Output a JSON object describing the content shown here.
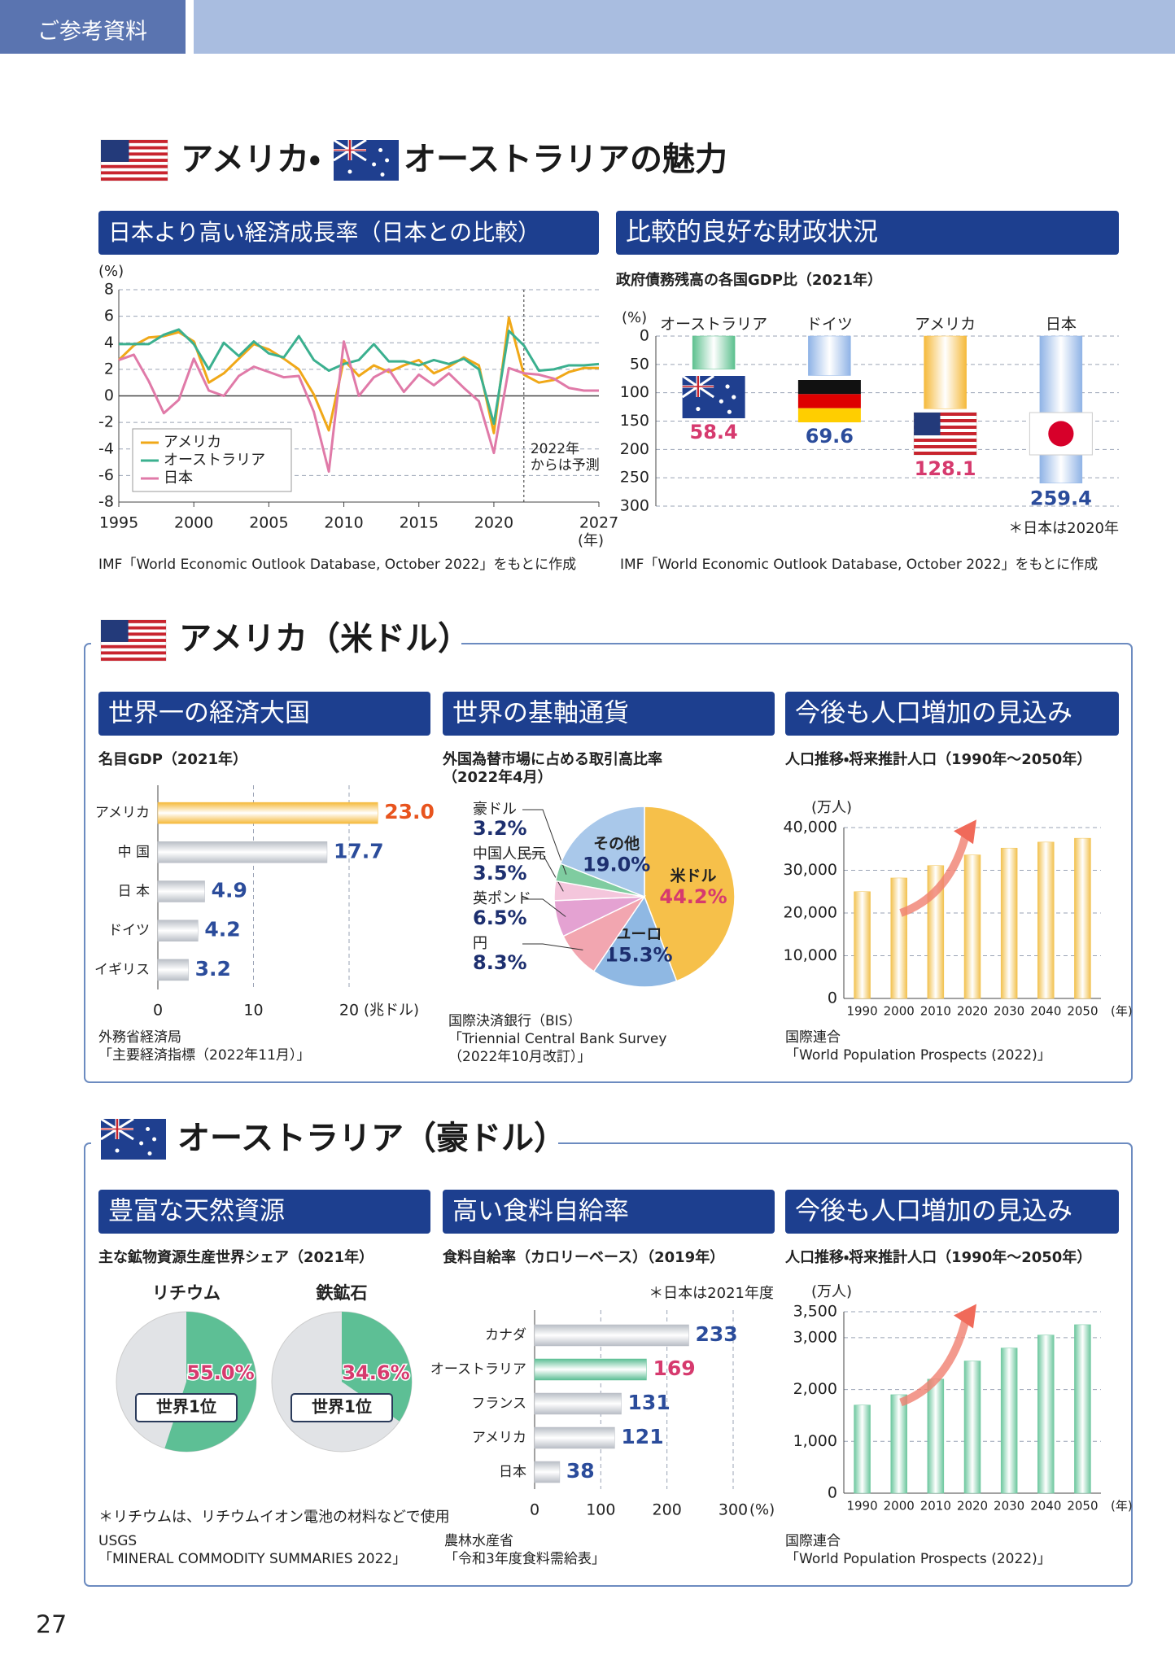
{
  "header": {
    "label": "ご参考資料"
  },
  "title_parts": [
    "アメリカ・",
    "オーストラリアの魅力"
  ],
  "sections": [
    {
      "title": "アメリカ（米ドル）"
    },
    {
      "title": "オーストラリア（豪ドル）"
    }
  ],
  "page_number": 27,
  "chart_data": [
    {
      "type": "line",
      "panel_title": "日本より高い経済成長率（日本との比較）",
      "x": [
        1995,
        1996,
        1997,
        1998,
        1999,
        2000,
        2001,
        2002,
        2003,
        2004,
        2005,
        2006,
        2007,
        2008,
        2009,
        2010,
        2011,
        2012,
        2013,
        2014,
        2015,
        2016,
        2017,
        2018,
        2019,
        2020,
        2021,
        2022,
        2023,
        2024,
        2025,
        2026,
        2027
      ],
      "series": [
        {
          "name": "アメリカ",
          "color": "#f0a818",
          "values": [
            2.7,
            3.8,
            4.4,
            4.5,
            4.8,
            4.1,
            1.0,
            1.7,
            2.8,
            3.9,
            3.5,
            2.8,
            2.0,
            0.1,
            -2.6,
            2.7,
            1.5,
            2.3,
            1.8,
            2.3,
            2.7,
            1.7,
            2.2,
            2.9,
            2.3,
            -2.8,
            5.9,
            1.6,
            1.0,
            1.2,
            1.8,
            2.1,
            2.1
          ]
        },
        {
          "name": "オーストラリア",
          "color": "#3bb08f",
          "values": [
            3.9,
            3.9,
            3.9,
            4.6,
            5.0,
            3.9,
            2.0,
            4.0,
            3.0,
            4.1,
            3.2,
            2.9,
            4.5,
            2.7,
            1.9,
            2.4,
            2.7,
            3.9,
            2.6,
            2.6,
            2.3,
            2.7,
            2.4,
            2.8,
            2.0,
            -2.1,
            4.9,
            3.8,
            1.9,
            2.0,
            2.3,
            2.3,
            2.4
          ]
        },
        {
          "name": "日本",
          "color": "#e07aa8",
          "values": [
            2.7,
            3.1,
            1.1,
            -1.3,
            -0.3,
            2.8,
            0.4,
            0.0,
            1.5,
            2.2,
            1.8,
            1.4,
            1.5,
            -1.2,
            -5.7,
            4.1,
            0.0,
            1.4,
            2.0,
            0.3,
            1.6,
            0.8,
            1.7,
            0.6,
            -0.4,
            -4.3,
            2.1,
            1.7,
            1.6,
            1.3,
            0.6,
            0.4,
            0.4
          ]
        }
      ],
      "xlim": [
        1995,
        2027
      ],
      "xticks": [
        1995,
        2000,
        2005,
        2010,
        2015,
        2020,
        2027
      ],
      "ylim": [
        -8,
        8
      ],
      "yticks": [
        -8,
        -6,
        -4,
        -2,
        0,
        2,
        4,
        6,
        8
      ],
      "y_label": "(%)",
      "x_label": "(年)",
      "grid": true,
      "legend": "lower left",
      "forecast_x": 2022,
      "annotation": [
        "2022年",
        "からは予測"
      ],
      "source": [
        "IMF「World Economic Outlook Database, October 2022」をもとに作成"
      ]
    },
    {
      "type": "bar",
      "y_inverted": true,
      "panel_title": "比較的良好な財政状況",
      "title": "政府債務残高の各国GDP比（2021年）",
      "categories": [
        "オーストラリア",
        "ドイツ",
        "アメリカ",
        "日本"
      ],
      "values": [
        58.4,
        69.6,
        128.1,
        259.4
      ],
      "colors": [
        "#5cc08e",
        "#8fb3e6",
        "#f5b93a",
        "#8fb3e6"
      ],
      "label_colors": [
        "#d63a6e",
        "#2b4c9b",
        "#d63a6e",
        "#2b4c9b"
      ],
      "ylim": [
        0,
        300
      ],
      "yticks": [
        0,
        50,
        100,
        150,
        200,
        250,
        300
      ],
      "y_label": "(%)",
      "grid": true,
      "note": "＊日本は2020年",
      "source": [
        "IMF「World Economic Outlook Database, October 2022」をもとに作成"
      ]
    },
    {
      "type": "hbar",
      "panel_title": "世界一の経済大国",
      "title": "名目GDP（2021年）",
      "categories": [
        "アメリカ",
        "中 国",
        "日 本",
        "ドイツ",
        "イギリス"
      ],
      "values": [
        23.0,
        17.7,
        4.9,
        4.2,
        3.2
      ],
      "value_labels": [
        "23.0",
        "17.7",
        "4.9",
        "4.2",
        "3.2"
      ],
      "colors": [
        "#f5b93a",
        "#b9bec6",
        "#b9bec6",
        "#b9bec6",
        "#b9bec6"
      ],
      "label_colors": [
        "#e8541e",
        "#2b4c9b",
        "#2b4c9b",
        "#2b4c9b",
        "#2b4c9b"
      ],
      "xlim": [
        0,
        24
      ],
      "xticks": [
        0,
        10,
        20
      ],
      "x_label": "(兆ドル)",
      "grid": true,
      "source": [
        "外務省経済局",
        "「主要経済指標（2022年11月）」"
      ]
    },
    {
      "type": "pie",
      "panel_title": "世界の基軸通貨",
      "title": [
        "外国為替市場に占める取引高比率",
        "（2022年4月）"
      ],
      "categories": [
        "米ドル",
        "ユーロ",
        "円",
        "英ポンド",
        "中国人民元",
        "豪ドル",
        "その他"
      ],
      "values": [
        44.2,
        15.3,
        8.3,
        6.5,
        3.5,
        3.2,
        19.0
      ],
      "value_labels": [
        "44.2%",
        "15.3%",
        "8.3%",
        "6.5%",
        "3.5%",
        "3.2%",
        "19.0%"
      ],
      "colors": [
        "#f6c04a",
        "#8fb8e3",
        "#f2a6b0",
        "#e4a2d2",
        "#f4c6dc",
        "#7fcca0",
        "#a9c8ea"
      ],
      "label_colors": [
        "#d63a6e",
        "#1d2f6f",
        "#1d2f6f",
        "#1d2f6f",
        "#1d2f6f",
        "#1d2f6f",
        "#1d2f6f"
      ],
      "source": [
        "国際決済銀行（BIS）",
        "「Triennial Central Bank Survey",
        "（2022年10月改訂）」"
      ]
    },
    {
      "type": "bar",
      "panel_title": "今後も人口増加の見込み",
      "title": "人口推移・将来推計人口（1990年～2050年）",
      "categories": [
        "1990",
        "2000",
        "2010",
        "2020",
        "2030",
        "2040",
        "2050"
      ],
      "values": [
        25000,
        28200,
        31100,
        33600,
        35200,
        36600,
        37500
      ],
      "color": "#f2c14e",
      "ylim": [
        0,
        40000
      ],
      "yticks": [
        0,
        {
          "value": 10000,
          "label": "10,000"
        },
        {
          "value": 20000,
          "label": "20,000"
        },
        {
          "value": 30000,
          "label": "30,000"
        },
        {
          "value": 40000,
          "label": "40,000"
        }
      ],
      "y_label": "(万人)",
      "x_label": "(年)",
      "grid": true,
      "source": [
        "国際連合",
        "「World Population Prospects (2022)」"
      ]
    },
    {
      "type": "pie_share",
      "panel_title": "豊富な天然資源",
      "title": "主な鉱物資源生産世界シェア（2021年）",
      "categories": [
        "リチウム",
        "鉄鉱石"
      ],
      "values": [
        55.0,
        34.6
      ],
      "value_labels": [
        "55.0%",
        "34.6%"
      ],
      "center_label": "世界1位",
      "color": "#5dbf95",
      "rest_color": "#e1e3e6",
      "note": "＊リチウムは、リチウムイオン電池の材料などで使用",
      "source": [
        "USGS",
        "「MINERAL COMMODITY SUMMARIES 2022」"
      ]
    },
    {
      "type": "hbar",
      "panel_title": "高い食料自給率",
      "title": "食料自給率（カロリーベース）（2019年）",
      "categories": [
        "カナダ",
        "オーストラリア",
        "フランス",
        "アメリカ",
        "日本"
      ],
      "values": [
        233,
        169,
        131,
        121,
        38
      ],
      "colors": [
        "#b9bec6",
        "#5dbf95",
        "#b9bec6",
        "#b9bec6",
        "#b9bec6"
      ],
      "label_colors": [
        "#2b4c9b",
        "#d63a6e",
        "#2b4c9b",
        "#2b4c9b",
        "#2b4c9b"
      ],
      "xlim": [
        0,
        300
      ],
      "xticks": [
        0,
        100,
        200,
        300
      ],
      "x_label": "(%)",
      "grid": true,
      "note": "＊日本は2021年度",
      "source": [
        "農林水産省",
        "「令和3年度食料需給表」"
      ]
    },
    {
      "type": "bar",
      "panel_title": "今後も人口増加の見込み",
      "title": "人口推移・将来推計人口（1990年～2050年）",
      "categories": [
        "1990",
        "2000",
        "2010",
        "2020",
        "2030",
        "2040",
        "2050"
      ],
      "values": [
        1700,
        1900,
        2200,
        2550,
        2800,
        3050,
        3250
      ],
      "color": "#6cc79e",
      "ylim": [
        0,
        3500
      ],
      "yticks": [
        0,
        {
          "value": 1000,
          "label": "1,000"
        },
        {
          "value": 2000,
          "label": "2,000"
        },
        {
          "value": 3000,
          "label": "3,000"
        },
        {
          "value": 3500,
          "label": "3,500"
        }
      ],
      "y_label": "(万人)",
      "x_label": "(年)",
      "grid": true,
      "source": [
        "国際連合",
        "「World Population Prospects (2022)」"
      ]
    }
  ]
}
